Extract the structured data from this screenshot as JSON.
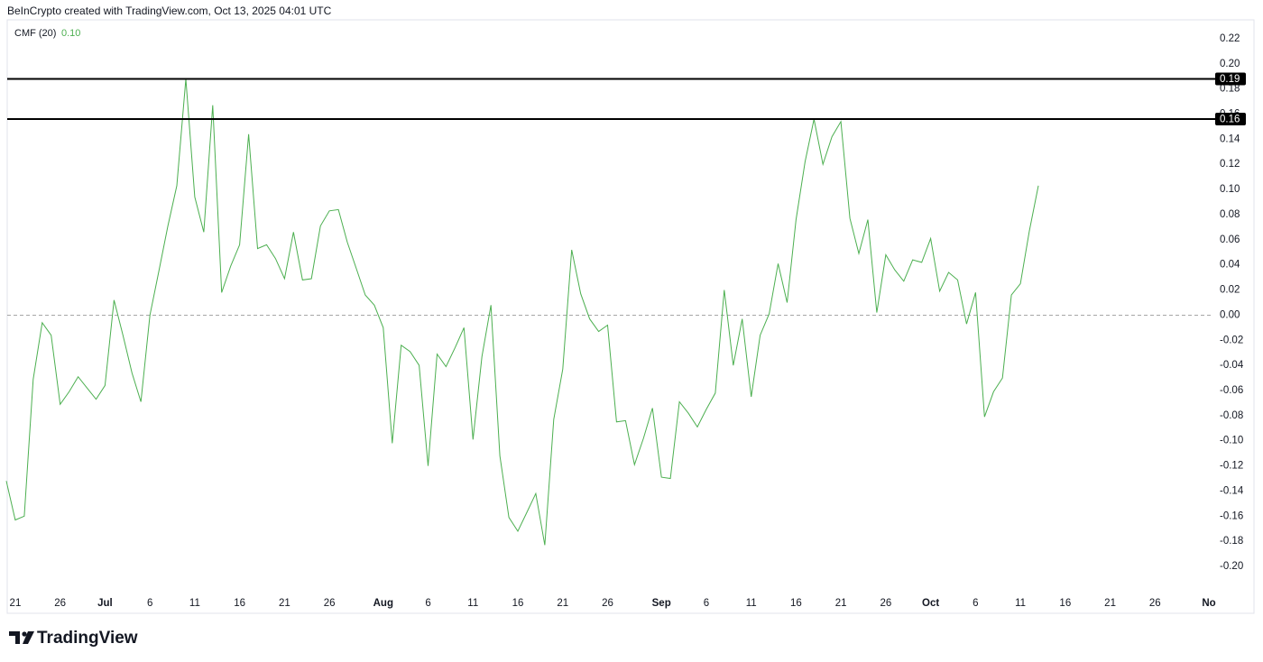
{
  "chart_data": {
    "type": "line",
    "header": "BeInCrypto created with TradingView.com, Oct 13, 2025 04:01 UTC",
    "brand": "TradingView",
    "indicator": {
      "name": "CMF (20)",
      "value": "0.10"
    },
    "color": "#4caf50",
    "x": [
      "06-20",
      "06-21",
      "06-22",
      "06-23",
      "06-24",
      "06-25",
      "06-26",
      "06-27",
      "06-28",
      "06-29",
      "06-30",
      "07-01",
      "07-02",
      "07-03",
      "07-04",
      "07-05",
      "07-06",
      "07-07",
      "07-08",
      "07-09",
      "07-10",
      "07-11",
      "07-12",
      "07-13",
      "07-14",
      "07-15",
      "07-16",
      "07-17",
      "07-18",
      "07-19",
      "07-20",
      "07-21",
      "07-22",
      "07-23",
      "07-24",
      "07-25",
      "07-26",
      "07-27",
      "07-28",
      "07-29",
      "07-30",
      "07-31",
      "08-01",
      "08-02",
      "08-03",
      "08-04",
      "08-05",
      "08-06",
      "08-07",
      "08-08",
      "08-09",
      "08-10",
      "08-11",
      "08-12",
      "08-13",
      "08-14",
      "08-15",
      "08-16",
      "08-17",
      "08-18",
      "08-19",
      "08-20",
      "08-21",
      "08-22",
      "08-23",
      "08-24",
      "08-25",
      "08-26",
      "08-27",
      "08-28",
      "08-29",
      "08-30",
      "08-31",
      "09-01",
      "09-02",
      "09-03",
      "09-04",
      "09-05",
      "09-06",
      "09-07",
      "09-08",
      "09-09",
      "09-10",
      "09-11",
      "09-12",
      "09-13",
      "09-14",
      "09-15",
      "09-16",
      "09-17",
      "09-18",
      "09-19",
      "09-20",
      "09-21",
      "09-22",
      "09-23",
      "09-24",
      "09-25",
      "09-26",
      "09-27",
      "09-28",
      "09-29",
      "09-30",
      "10-01",
      "10-02",
      "10-03",
      "10-04",
      "10-05",
      "10-06",
      "10-07",
      "10-08",
      "10-09",
      "10-10",
      "10-11",
      "10-12",
      "10-13"
    ],
    "values": [
      -0.132,
      -0.163,
      -0.16,
      -0.051,
      -0.006,
      -0.016,
      -0.071,
      -0.061,
      -0.049,
      -0.058,
      -0.067,
      -0.056,
      0.012,
      -0.016,
      -0.046,
      -0.069,
      0.0,
      0.035,
      0.071,
      0.103,
      0.188,
      0.094,
      0.066,
      0.167,
      0.018,
      0.039,
      0.056,
      0.144,
      0.053,
      0.056,
      0.045,
      0.029,
      0.066,
      0.028,
      0.029,
      0.071,
      0.083,
      0.084,
      0.058,
      0.037,
      0.016,
      0.008,
      -0.01,
      -0.102,
      -0.024,
      -0.029,
      -0.04,
      -0.12,
      -0.031,
      -0.041,
      -0.026,
      -0.01,
      -0.099,
      -0.033,
      0.008,
      -0.112,
      -0.161,
      -0.172,
      -0.157,
      -0.142,
      -0.183,
      -0.083,
      -0.043,
      0.052,
      0.017,
      -0.003,
      -0.013,
      -0.008,
      -0.085,
      -0.084,
      -0.119,
      -0.098,
      -0.074,
      -0.129,
      -0.13,
      -0.069,
      -0.078,
      -0.089,
      -0.075,
      -0.062,
      0.02,
      -0.04,
      -0.003,
      -0.065,
      -0.016,
      0.001,
      0.041,
      0.01,
      0.076,
      0.122,
      0.156,
      0.12,
      0.142,
      0.154,
      0.077,
      0.049,
      0.076,
      0.002,
      0.048,
      0.036,
      0.027,
      0.044,
      0.042,
      0.061,
      0.019,
      0.034,
      0.028,
      -0.007,
      0.018,
      -0.081,
      -0.061,
      -0.05,
      0.016,
      0.025,
      0.067,
      0.103
    ],
    "xlim": [
      "06-20",
      "11-01"
    ],
    "xticks": [
      {
        "value": "06-21",
        "label": "21"
      },
      {
        "value": "06-26",
        "label": "26"
      },
      {
        "value": "07-01",
        "label": "Jul"
      },
      {
        "value": "07-06",
        "label": "6"
      },
      {
        "value": "07-11",
        "label": "11"
      },
      {
        "value": "07-16",
        "label": "16"
      },
      {
        "value": "07-21",
        "label": "21"
      },
      {
        "value": "07-26",
        "label": "26"
      },
      {
        "value": "08-01",
        "label": "Aug"
      },
      {
        "value": "08-06",
        "label": "6"
      },
      {
        "value": "08-11",
        "label": "11"
      },
      {
        "value": "08-16",
        "label": "16"
      },
      {
        "value": "08-21",
        "label": "21"
      },
      {
        "value": "08-26",
        "label": "26"
      },
      {
        "value": "09-01",
        "label": "Sep"
      },
      {
        "value": "09-06",
        "label": "6"
      },
      {
        "value": "09-11",
        "label": "11"
      },
      {
        "value": "09-16",
        "label": "16"
      },
      {
        "value": "09-21",
        "label": "21"
      },
      {
        "value": "09-26",
        "label": "26"
      },
      {
        "value": "10-01",
        "label": "Oct"
      },
      {
        "value": "10-06",
        "label": "6"
      },
      {
        "value": "10-11",
        "label": "11"
      },
      {
        "value": "10-16",
        "label": "16"
      },
      {
        "value": "10-21",
        "label": "21"
      },
      {
        "value": "10-26",
        "label": "26"
      },
      {
        "value": "11-01",
        "label": "No"
      }
    ],
    "ylim": [
      -0.22,
      0.235
    ],
    "yticks": [
      {
        "value": 0.22,
        "label": "0.22"
      },
      {
        "value": 0.2,
        "label": "0.20"
      },
      {
        "value": 0.18,
        "label": "0.18"
      },
      {
        "value": 0.16,
        "label": "0.16"
      },
      {
        "value": 0.14,
        "label": "0.14"
      },
      {
        "value": 0.12,
        "label": "0.12"
      },
      {
        "value": 0.1,
        "label": "0.10"
      },
      {
        "value": 0.08,
        "label": "0.08"
      },
      {
        "value": 0.06,
        "label": "0.06"
      },
      {
        "value": 0.04,
        "label": "0.04"
      },
      {
        "value": 0.02,
        "label": "0.02"
      },
      {
        "value": 0,
        "label": "0.00"
      },
      {
        "value": -0.02,
        "label": "-0.02"
      },
      {
        "value": -0.04,
        "label": "-0.04"
      },
      {
        "value": -0.06,
        "label": "-0.06"
      },
      {
        "value": -0.08,
        "label": "-0.08"
      },
      {
        "value": -0.1,
        "label": "-0.10"
      },
      {
        "value": -0.12,
        "label": "-0.12"
      },
      {
        "value": -0.14,
        "label": "-0.14"
      },
      {
        "value": -0.16,
        "label": "-0.16"
      },
      {
        "value": -0.18,
        "label": "-0.18"
      },
      {
        "value": -0.2,
        "label": "-0.20"
      }
    ],
    "zero_line": 0,
    "hlines": [
      {
        "value": 0.188,
        "label": "0.19"
      },
      {
        "value": 0.156,
        "label": "0.16"
      }
    ],
    "grid": false
  }
}
